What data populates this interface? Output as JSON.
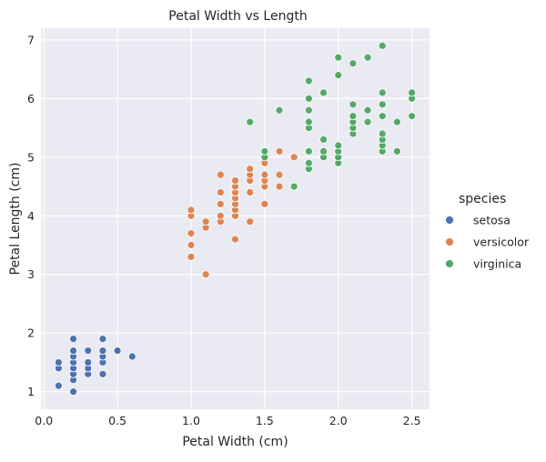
{
  "chart_data": {
    "type": "scatter",
    "title": "Petal Width vs Length",
    "xlabel": "Petal Width (cm)",
    "ylabel": "Petal Length (cm)",
    "xlim": [
      -0.02,
      2.62
    ],
    "ylim": [
      0.7,
      7.2
    ],
    "xticks": [
      0.0,
      0.5,
      1.0,
      1.5,
      2.0,
      2.5
    ],
    "xtick_labels": [
      "0.0",
      "0.5",
      "1.0",
      "1.5",
      "2.0",
      "2.5"
    ],
    "yticks": [
      1,
      2,
      3,
      4,
      5,
      6,
      7
    ],
    "ytick_labels": [
      "1",
      "2",
      "3",
      "4",
      "5",
      "6",
      "7"
    ],
    "grid": true,
    "legend_title": "species",
    "legend_position": "right",
    "series": [
      {
        "name": "setosa",
        "color": "#4c72b0",
        "points": [
          [
            0.1,
            1.1
          ],
          [
            0.1,
            1.4
          ],
          [
            0.1,
            1.5
          ],
          [
            0.2,
            1.0
          ],
          [
            0.2,
            1.2
          ],
          [
            0.2,
            1.3
          ],
          [
            0.2,
            1.4
          ],
          [
            0.2,
            1.5
          ],
          [
            0.2,
            1.6
          ],
          [
            0.2,
            1.7
          ],
          [
            0.2,
            1.9
          ],
          [
            0.3,
            1.3
          ],
          [
            0.3,
            1.4
          ],
          [
            0.3,
            1.5
          ],
          [
            0.3,
            1.7
          ],
          [
            0.4,
            1.3
          ],
          [
            0.4,
            1.5
          ],
          [
            0.4,
            1.6
          ],
          [
            0.4,
            1.7
          ],
          [
            0.4,
            1.9
          ],
          [
            0.5,
            1.7
          ],
          [
            0.6,
            1.6
          ]
        ]
      },
      {
        "name": "versicolor",
        "color": "#dd8452",
        "points": [
          [
            1.0,
            3.3
          ],
          [
            1.0,
            3.5
          ],
          [
            1.0,
            3.7
          ],
          [
            1.0,
            4.0
          ],
          [
            1.0,
            4.1
          ],
          [
            1.1,
            3.0
          ],
          [
            1.1,
            3.8
          ],
          [
            1.1,
            3.9
          ],
          [
            1.2,
            3.9
          ],
          [
            1.2,
            4.0
          ],
          [
            1.2,
            4.2
          ],
          [
            1.2,
            4.4
          ],
          [
            1.2,
            4.7
          ],
          [
            1.3,
            3.6
          ],
          [
            1.3,
            4.0
          ],
          [
            1.3,
            4.1
          ],
          [
            1.3,
            4.2
          ],
          [
            1.3,
            4.3
          ],
          [
            1.3,
            4.4
          ],
          [
            1.3,
            4.5
          ],
          [
            1.3,
            4.6
          ],
          [
            1.4,
            3.9
          ],
          [
            1.4,
            4.4
          ],
          [
            1.4,
            4.6
          ],
          [
            1.4,
            4.7
          ],
          [
            1.4,
            4.8
          ],
          [
            1.5,
            4.2
          ],
          [
            1.5,
            4.5
          ],
          [
            1.5,
            4.6
          ],
          [
            1.5,
            4.7
          ],
          [
            1.5,
            4.9
          ],
          [
            1.6,
            4.5
          ],
          [
            1.6,
            4.7
          ],
          [
            1.6,
            5.1
          ],
          [
            1.7,
            5.0
          ],
          [
            1.8,
            4.8
          ]
        ]
      },
      {
        "name": "virginica",
        "color": "#55a868",
        "points": [
          [
            1.4,
            5.6
          ],
          [
            1.5,
            5.0
          ],
          [
            1.5,
            5.1
          ],
          [
            1.6,
            5.8
          ],
          [
            1.7,
            4.5
          ],
          [
            1.8,
            4.8
          ],
          [
            1.8,
            4.9
          ],
          [
            1.8,
            5.1
          ],
          [
            1.8,
            5.5
          ],
          [
            1.8,
            5.6
          ],
          [
            1.8,
            5.8
          ],
          [
            1.8,
            6.0
          ],
          [
            1.8,
            6.3
          ],
          [
            1.9,
            5.0
          ],
          [
            1.9,
            5.1
          ],
          [
            1.9,
            5.3
          ],
          [
            1.9,
            6.1
          ],
          [
            2.0,
            4.9
          ],
          [
            2.0,
            5.0
          ],
          [
            2.0,
            5.1
          ],
          [
            2.0,
            5.2
          ],
          [
            2.0,
            6.4
          ],
          [
            2.0,
            6.7
          ],
          [
            2.1,
            5.4
          ],
          [
            2.1,
            5.5
          ],
          [
            2.1,
            5.6
          ],
          [
            2.1,
            5.7
          ],
          [
            2.1,
            5.9
          ],
          [
            2.1,
            6.6
          ],
          [
            2.2,
            5.6
          ],
          [
            2.2,
            5.8
          ],
          [
            2.2,
            6.7
          ],
          [
            2.3,
            5.1
          ],
          [
            2.3,
            5.2
          ],
          [
            2.3,
            5.3
          ],
          [
            2.3,
            5.4
          ],
          [
            2.3,
            5.7
          ],
          [
            2.3,
            5.9
          ],
          [
            2.3,
            6.1
          ],
          [
            2.3,
            6.9
          ],
          [
            2.4,
            5.1
          ],
          [
            2.4,
            5.6
          ],
          [
            2.5,
            5.7
          ],
          [
            2.5,
            6.0
          ],
          [
            2.5,
            6.1
          ]
        ]
      }
    ]
  }
}
